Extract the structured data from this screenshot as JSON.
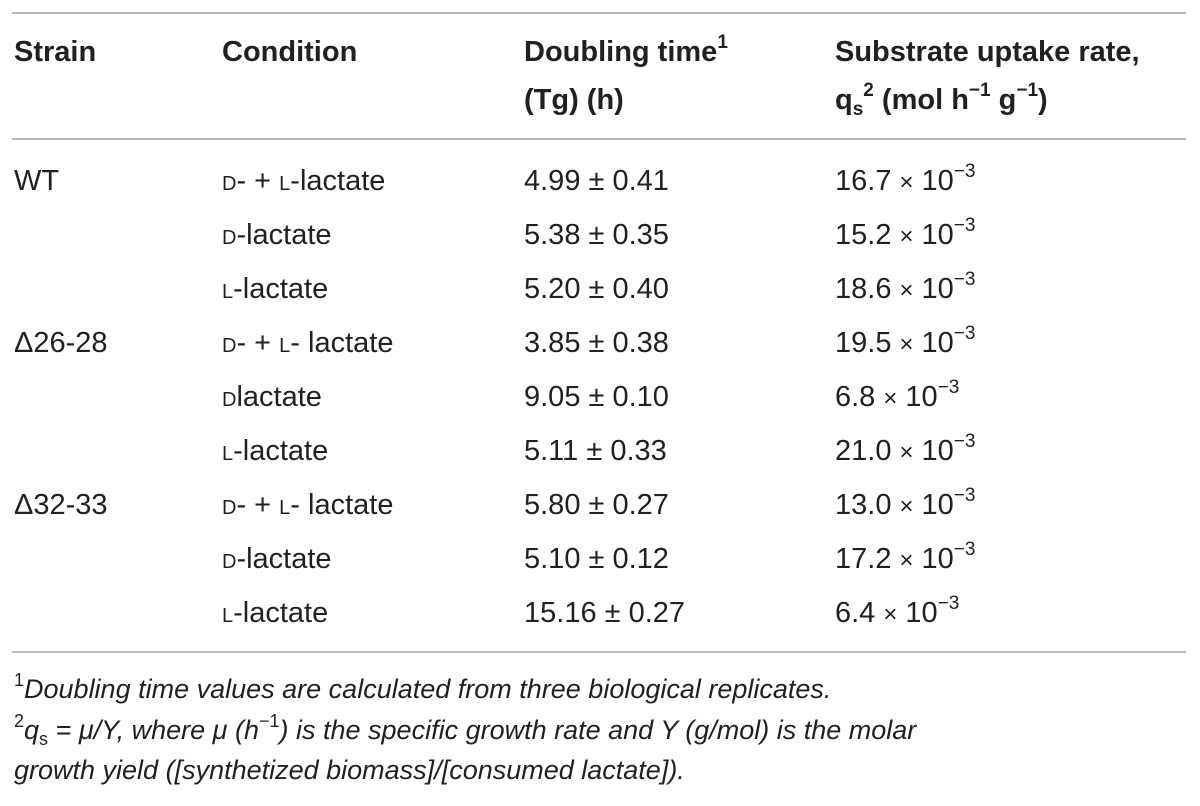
{
  "table": {
    "headers": {
      "strain": "Strain",
      "condition": "Condition",
      "doubling_line1": "Doubling time",
      "doubling_sup": "1",
      "doubling_line2": "(Tg) (h)",
      "uptake_line1": "Substrate uptake rate,",
      "uptake_q": "q",
      "uptake_sub": "s",
      "uptake_sup": "2",
      "uptake_units_pre": " (mol h",
      "uptake_units_exp1": "−1",
      "uptake_units_mid": " g",
      "uptake_units_exp2": "−1",
      "uptake_units_post": ")"
    },
    "rows": [
      {
        "strain": "WT",
        "condition_a": "D",
        "condition_b": "- + ",
        "condition_c": "L",
        "condition_d": "-lactate",
        "doubling": "4.99 ± 0.41",
        "uptake_base": "16.7",
        "uptake_times": "×",
        "uptake_pow": "10",
        "uptake_exp": "−3"
      },
      {
        "strain": "",
        "condition_a": "D",
        "condition_b": "-lactate",
        "condition_c": "",
        "condition_d": "",
        "doubling": "5.38 ± 0.35",
        "uptake_base": "15.2",
        "uptake_times": "×",
        "uptake_pow": "10",
        "uptake_exp": "−3"
      },
      {
        "strain": "",
        "condition_a": "L",
        "condition_b": "-lactate",
        "condition_c": "",
        "condition_d": "",
        "doubling": "5.20 ± 0.40",
        "uptake_base": "18.6",
        "uptake_times": "×",
        "uptake_pow": "10",
        "uptake_exp": "−3"
      },
      {
        "strain": "Δ26-28",
        "condition_a": "D",
        "condition_b": "- + ",
        "condition_c": "L",
        "condition_d": "- lactate",
        "doubling": "3.85 ± 0.38",
        "uptake_base": "19.5",
        "uptake_times": "×",
        "uptake_pow": "10",
        "uptake_exp": "−3"
      },
      {
        "strain": "",
        "condition_a": "D",
        "condition_b": "lactate",
        "condition_c": "",
        "condition_d": "",
        "doubling": "9.05 ± 0.10",
        "uptake_base": "6.8",
        "uptake_times": "×",
        "uptake_pow": "10",
        "uptake_exp": "−3"
      },
      {
        "strain": "",
        "condition_a": "L",
        "condition_b": "-lactate",
        "condition_c": "",
        "condition_d": "",
        "doubling": "5.11 ± 0.33",
        "uptake_base": "21.0",
        "uptake_times": "×",
        "uptake_pow": "10",
        "uptake_exp": "−3"
      },
      {
        "strain": "Δ32-33",
        "condition_a": "D",
        "condition_b": "- + ",
        "condition_c": "L",
        "condition_d": "- lactate",
        "doubling": "5.80 ± 0.27",
        "uptake_base": "13.0",
        "uptake_times": "×",
        "uptake_pow": "10",
        "uptake_exp": "−3"
      },
      {
        "strain": "",
        "condition_a": "D",
        "condition_b": "-lactate",
        "condition_c": "",
        "condition_d": "",
        "doubling": "5.10 ± 0.12",
        "uptake_base": "17.2",
        "uptake_times": "×",
        "uptake_pow": "10",
        "uptake_exp": "−3"
      },
      {
        "strain": "",
        "condition_a": "L",
        "condition_b": "-lactate",
        "condition_c": "",
        "condition_d": "",
        "doubling": "15.16 ± 0.27",
        "uptake_base": "6.4",
        "uptake_times": "×",
        "uptake_pow": "10",
        "uptake_exp": "−3"
      }
    ]
  },
  "footnotes": {
    "note1_marker": "1",
    "note1_text": "Doubling time values are calculated from three biological replicates.",
    "note2_marker": "2",
    "note2_q": "q",
    "note2_sub": "s",
    "note2_text_a": " = μ/Y, where μ (h",
    "note2_exp": "−1",
    "note2_text_b": ") is the specific growth rate and Y (g/mol) is the molar",
    "note2_line2": "growth yield ([synthetized biomass]/[consumed lactate])."
  }
}
